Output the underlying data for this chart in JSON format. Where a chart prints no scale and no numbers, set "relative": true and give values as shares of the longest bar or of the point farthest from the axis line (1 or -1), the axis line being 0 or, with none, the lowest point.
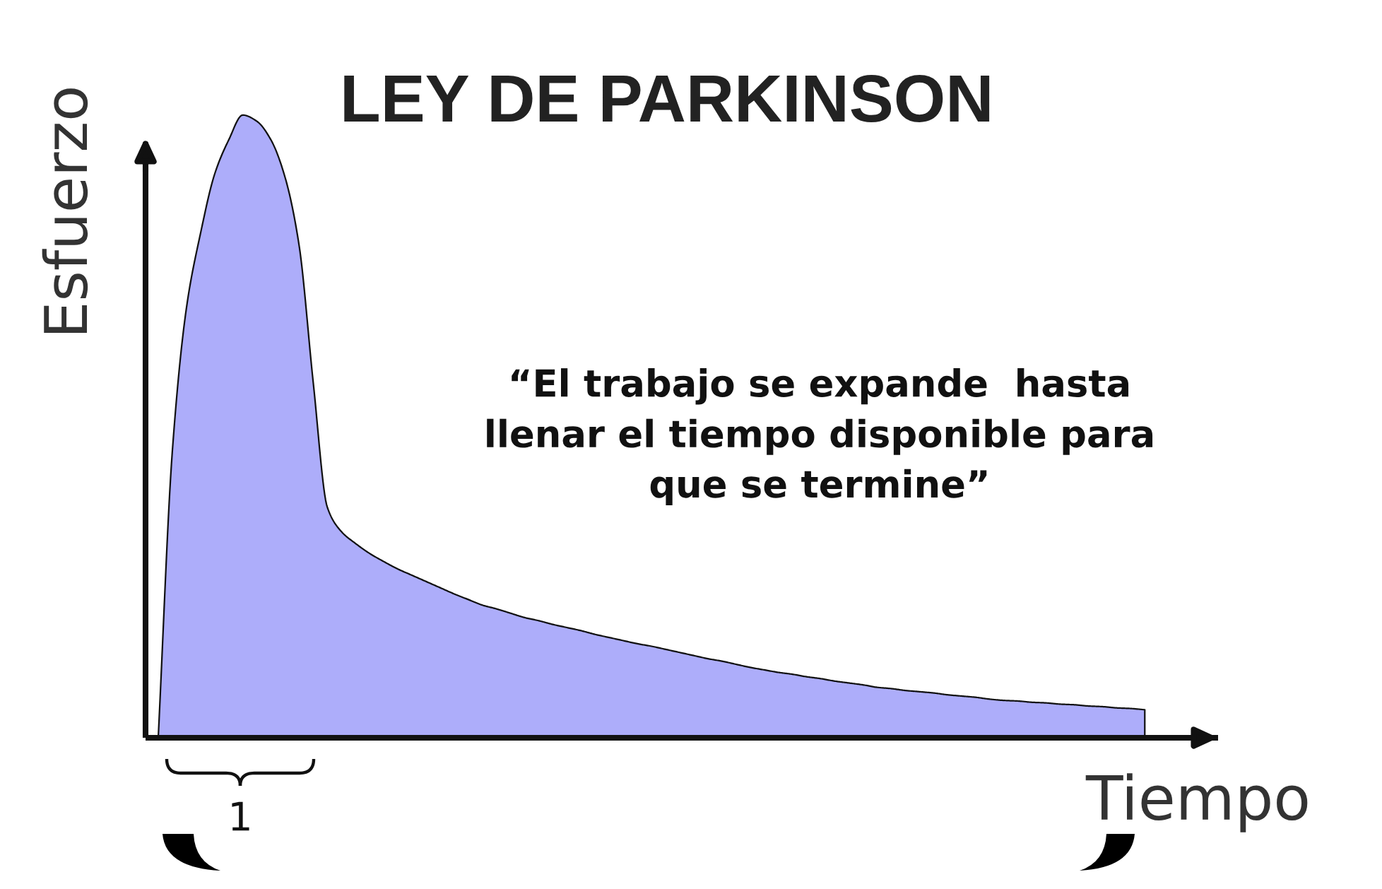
{
  "chart_data": {
    "type": "area",
    "title": "LEY DE PARKINSON",
    "xlabel": "Tiempo",
    "ylabel": "Esfuerzo",
    "relative": true,
    "color": "#adadfa",
    "categories": [
      null,
      null,
      null,
      null,
      null,
      null,
      null,
      null,
      null,
      null,
      null,
      null,
      null,
      null,
      null,
      null,
      null,
      null,
      null,
      null,
      null,
      null,
      null,
      null,
      null,
      null,
      null,
      null,
      null,
      null,
      null,
      null,
      null,
      null,
      null,
      null,
      null,
      null,
      null,
      null,
      null,
      null,
      null,
      null,
      null,
      null,
      null,
      null,
      null,
      null,
      null,
      null,
      null,
      null,
      null,
      null,
      null,
      null,
      null,
      null,
      null,
      null,
      null,
      null,
      null,
      null,
      null,
      null,
      null,
      null,
      null
    ],
    "values": [
      0,
      0.46,
      0.69,
      0.81,
      0.905,
      0.96,
      1.0,
      0.99,
      0.96,
      0.9,
      0.79,
      0.57,
      0.37,
      0.331,
      0.312,
      0.296,
      0.283,
      0.271,
      0.261,
      0.251,
      0.241,
      0.231,
      0.222,
      0.213,
      0.207,
      0.2,
      0.193,
      0.188,
      0.182,
      0.177,
      0.172,
      0.166,
      0.161,
      0.156,
      0.151,
      0.147,
      0.142,
      0.137,
      0.132,
      0.127,
      0.123,
      0.118,
      0.113,
      0.109,
      0.105,
      0.102,
      0.098,
      0.095,
      0.091,
      0.088,
      0.085,
      0.081,
      0.079,
      0.076,
      0.074,
      0.072,
      0.069,
      0.067,
      0.065,
      0.062,
      0.06,
      0.059,
      0.057,
      0.056,
      0.054,
      0.053,
      0.051,
      0.05,
      0.048,
      0.047,
      0.045
    ],
    "annotations": [
      "“El trabajo se expande  hasta\nllenar el tiempo disponible para\nque se termine”",
      "1"
    ]
  }
}
